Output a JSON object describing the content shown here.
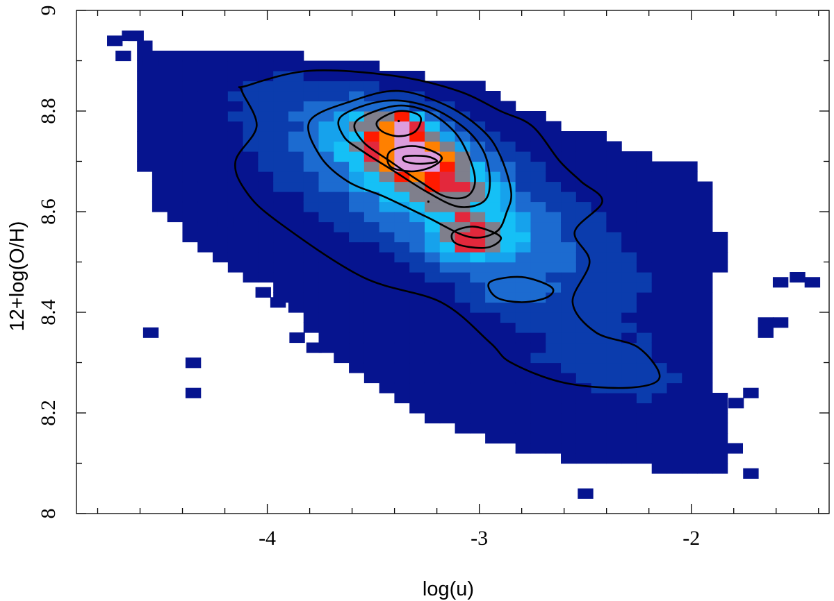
{
  "chart_data": {
    "type": "heatmap",
    "title": "",
    "xlabel": "log(u)",
    "ylabel": "12+log(O/H)",
    "xlim": [
      -4.9,
      -1.35
    ],
    "ylim": [
      8.0,
      9.0
    ],
    "x_ticks": [
      -4,
      -3,
      -2
    ],
    "x_tick_labels": [
      "-4",
      "-3",
      "-2"
    ],
    "x_minor_step": 0.2,
    "y_ticks": [
      8.0,
      8.2,
      8.4,
      8.6,
      8.8,
      9.0
    ],
    "y_tick_labels": [
      "8",
      "8.2",
      "8.4",
      "8.6",
      "8.8",
      "9"
    ],
    "y_minor_step": 0.1,
    "grid": false,
    "legend": "none",
    "bin_size": {
      "x": 0.0714,
      "y": 0.02
    },
    "colormap": [
      "#06148f",
      "#0b3cad",
      "#1c6bd0",
      "#16a2ec",
      "#15c0f6",
      "#7f7f8c",
      "#e3283c",
      "#ff1a00",
      "#ff8000",
      "#5a5050",
      "#3a3a3a",
      "#dd9ddd"
    ],
    "density_components": [
      {
        "x": -3.2,
        "y": 8.63,
        "sx": 0.52,
        "sy": 0.125,
        "rho": -0.72,
        "w": 0.55
      },
      {
        "x": -3.38,
        "y": 8.775,
        "sx": 0.07,
        "sy": 0.018,
        "rho": 0.0,
        "w": 0.6
      },
      {
        "x": -3.3,
        "y": 8.705,
        "sx": 0.08,
        "sy": 0.018,
        "rho": 0.0,
        "w": 0.6
      },
      {
        "x": -3.3,
        "y": 8.705,
        "sx": 0.22,
        "sy": 0.06,
        "rho": -0.6,
        "w": 0.32
      },
      {
        "x": -3.3,
        "y": 8.75,
        "sx": 0.26,
        "sy": 0.05,
        "rho": -0.5,
        "w": 0.25
      },
      {
        "x": -3.05,
        "y": 8.54,
        "sx": 0.12,
        "sy": 0.03,
        "rho": 0.0,
        "w": 0.38
      },
      {
        "x": -2.85,
        "y": 8.44,
        "sx": 0.12,
        "sy": 0.025,
        "rho": 0.0,
        "w": 0.22
      },
      {
        "x": -2.4,
        "y": 8.28,
        "sx": 0.4,
        "sy": 0.08,
        "rho": -0.4,
        "w": 0.12
      }
    ],
    "density_levels": [
      0.015,
      0.1,
      0.25,
      0.4,
      0.48,
      0.62,
      0.72,
      0.8,
      0.88,
      1.05
    ],
    "support_region": [
      [
        -4.7,
        8.96
      ],
      [
        -4.55,
        8.93
      ],
      [
        -4.2,
        8.93
      ],
      [
        -3.5,
        8.89
      ],
      [
        -3.0,
        8.85
      ],
      [
        -2.6,
        8.77
      ],
      [
        -2.4,
        8.75
      ],
      [
        -2.2,
        8.71
      ],
      [
        -2.0,
        8.7
      ],
      [
        -1.9,
        8.65
      ],
      [
        -1.86,
        8.55
      ],
      [
        -1.86,
        8.5
      ],
      [
        -1.9,
        8.4
      ],
      [
        -1.9,
        8.3
      ],
      [
        -1.85,
        8.2
      ],
      [
        -1.78,
        8.13
      ],
      [
        -1.85,
        8.08
      ],
      [
        -2.2,
        8.09
      ],
      [
        -2.8,
        8.12
      ],
      [
        -3.3,
        8.2
      ],
      [
        -3.7,
        8.32
      ],
      [
        -4.0,
        8.45
      ],
      [
        -4.3,
        8.52
      ],
      [
        -4.55,
        8.62
      ],
      [
        -4.62,
        8.75
      ],
      [
        -4.6,
        8.9
      ]
    ],
    "isolated_bins": [
      [
        -4.72,
        8.94
      ],
      [
        -4.62,
        8.95
      ],
      [
        -4.68,
        8.91
      ],
      [
        -4.55,
        8.9
      ],
      [
        -4.55,
        8.36
      ],
      [
        -4.35,
        8.3
      ],
      [
        -4.35,
        8.24
      ],
      [
        -4.2,
        8.58
      ],
      [
        -4.27,
        8.55
      ],
      [
        -3.95,
        8.42
      ],
      [
        -4.02,
        8.44
      ],
      [
        -3.86,
        8.35
      ],
      [
        -3.78,
        8.33
      ],
      [
        -2.5,
        8.04
      ],
      [
        -1.72,
        8.08
      ],
      [
        -1.72,
        8.24
      ],
      [
        -1.79,
        8.22
      ],
      [
        -1.65,
        8.38
      ],
      [
        -1.65,
        8.36
      ],
      [
        -1.58,
        8.38
      ],
      [
        -1.5,
        8.47
      ],
      [
        -1.43,
        8.46
      ],
      [
        -1.58,
        8.46
      ]
    ],
    "contours": [
      {
        "level": 1,
        "points": [
          [
            -4.1,
            8.85
          ],
          [
            -3.8,
            8.88
          ],
          [
            -3.4,
            8.87
          ],
          [
            -3.1,
            8.84
          ],
          [
            -2.9,
            8.8
          ],
          [
            -2.75,
            8.77
          ],
          [
            -2.62,
            8.7
          ],
          [
            -2.52,
            8.66
          ],
          [
            -2.42,
            8.62
          ],
          [
            -2.55,
            8.56
          ],
          [
            -2.48,
            8.5
          ],
          [
            -2.56,
            8.42
          ],
          [
            -2.45,
            8.36
          ],
          [
            -2.25,
            8.33
          ],
          [
            -2.15,
            8.27
          ],
          [
            -2.3,
            8.25
          ],
          [
            -2.6,
            8.26
          ],
          [
            -2.85,
            8.3
          ],
          [
            -2.95,
            8.34
          ],
          [
            -3.18,
            8.42
          ],
          [
            -3.55,
            8.47
          ],
          [
            -3.95,
            8.58
          ],
          [
            -4.1,
            8.64
          ],
          [
            -4.15,
            8.7
          ],
          [
            -4.05,
            8.77
          ],
          [
            -4.12,
            8.84
          ]
        ]
      },
      {
        "level": 2,
        "points": [
          [
            -3.8,
            8.78
          ],
          [
            -3.6,
            8.82
          ],
          [
            -3.38,
            8.84
          ],
          [
            -3.15,
            8.81
          ],
          [
            -2.98,
            8.76
          ],
          [
            -2.9,
            8.71
          ],
          [
            -2.85,
            8.64
          ],
          [
            -2.87,
            8.6
          ],
          [
            -2.92,
            8.56
          ],
          [
            -3.05,
            8.55
          ],
          [
            -3.25,
            8.59
          ],
          [
            -3.45,
            8.63
          ],
          [
            -3.62,
            8.66
          ],
          [
            -3.75,
            8.71
          ]
        ]
      },
      {
        "level": 3,
        "points": [
          [
            -3.65,
            8.79
          ],
          [
            -3.45,
            8.82
          ],
          [
            -3.25,
            8.81
          ],
          [
            -3.08,
            8.77
          ],
          [
            -2.98,
            8.72
          ],
          [
            -2.95,
            8.66
          ],
          [
            -2.98,
            8.62
          ],
          [
            -3.1,
            8.61
          ],
          [
            -3.25,
            8.64
          ],
          [
            -3.4,
            8.68
          ],
          [
            -3.55,
            8.72
          ],
          [
            -3.64,
            8.75
          ]
        ]
      },
      {
        "level": 4,
        "points": [
          [
            -3.58,
            8.78
          ],
          [
            -3.4,
            8.81
          ],
          [
            -3.25,
            8.8
          ],
          [
            -3.12,
            8.76
          ],
          [
            -3.05,
            8.71
          ],
          [
            -3.02,
            8.66
          ],
          [
            -3.06,
            8.63
          ],
          [
            -3.16,
            8.63
          ],
          [
            -3.28,
            8.66
          ],
          [
            -3.42,
            8.7
          ],
          [
            -3.55,
            8.74
          ]
        ]
      },
      {
        "level": 5,
        "points": [
          [
            -3.48,
            8.78
          ],
          [
            -3.38,
            8.8
          ],
          [
            -3.28,
            8.79
          ],
          [
            -3.3,
            8.76
          ],
          [
            -3.38,
            8.75
          ],
          [
            -3.46,
            8.76
          ]
        ]
      },
      {
        "level": 5,
        "points": [
          [
            -3.42,
            8.72
          ],
          [
            -3.3,
            8.73
          ],
          [
            -3.18,
            8.71
          ],
          [
            -3.22,
            8.69
          ],
          [
            -3.32,
            8.68
          ],
          [
            -3.42,
            8.69
          ]
        ]
      },
      {
        "level": 6,
        "points": [
          [
            -3.35,
            8.71
          ],
          [
            -3.25,
            8.71
          ],
          [
            -3.2,
            8.7
          ],
          [
            -3.28,
            8.695
          ],
          [
            -3.35,
            8.7
          ]
        ]
      },
      {
        "level": 2,
        "points": [
          [
            -3.12,
            8.56
          ],
          [
            -3.02,
            8.57
          ],
          [
            -2.9,
            8.55
          ],
          [
            -2.95,
            8.53
          ],
          [
            -3.05,
            8.53
          ],
          [
            -3.12,
            8.54
          ]
        ]
      },
      {
        "level": 1,
        "points": [
          [
            -2.95,
            8.46
          ],
          [
            -2.8,
            8.47
          ],
          [
            -2.66,
            8.45
          ],
          [
            -2.68,
            8.43
          ],
          [
            -2.8,
            8.42
          ],
          [
            -2.92,
            8.43
          ]
        ]
      }
    ],
    "points": [
      [
        -3.38,
        8.78
      ],
      [
        -3.24,
        8.62
      ]
    ]
  }
}
